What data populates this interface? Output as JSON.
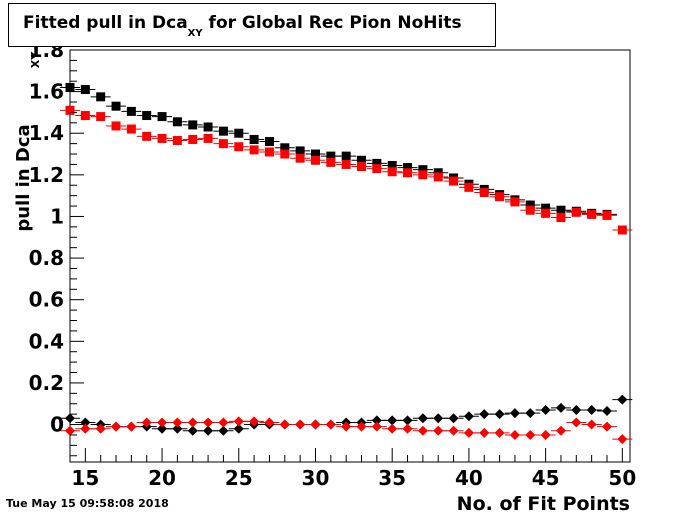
{
  "title": {
    "main": "Fitted pull in Dca",
    "subscript": "XY",
    "rest": " for Global Rec Pion NoHits"
  },
  "timestamp": "Tue May 15 09:58:08 2018",
  "chart_data": {
    "type": "scatter",
    "xlabel": "No. of Fit Points",
    "ylabel": "pull in Dca",
    "ylabel_subscript": "XY",
    "xlim": [
      14,
      50.5
    ],
    "ylim": [
      -0.18,
      1.8
    ],
    "xticks": [
      15,
      20,
      25,
      30,
      35,
      40,
      45,
      50
    ],
    "yticks": [
      0,
      0.2,
      0.4,
      0.6,
      0.8,
      1,
      1.2,
      1.4,
      1.6,
      1.8
    ],
    "ytick_labels": [
      "0",
      "0.2",
      "0.4",
      "0.6",
      "0.8",
      "1",
      "1.2",
      "1.4",
      "1.6",
      "1.8"
    ],
    "grid": false,
    "legend": "none",
    "series": [
      {
        "marker": "square",
        "color": "#000000",
        "x": [
          14,
          15,
          16,
          17,
          18,
          19,
          20,
          21,
          22,
          23,
          24,
          25,
          26,
          27,
          28,
          29,
          30,
          31,
          32,
          33,
          34,
          35,
          36,
          37,
          38,
          39,
          40,
          41,
          42,
          43,
          44,
          45,
          46,
          47,
          48,
          49
        ],
        "y": [
          1.62,
          1.61,
          1.575,
          1.53,
          1.505,
          1.485,
          1.48,
          1.455,
          1.44,
          1.43,
          1.41,
          1.4,
          1.37,
          1.36,
          1.33,
          1.315,
          1.3,
          1.29,
          1.29,
          1.27,
          1.255,
          1.245,
          1.235,
          1.225,
          1.21,
          1.185,
          1.155,
          1.13,
          1.105,
          1.08,
          1.055,
          1.04,
          1.03,
          1.025,
          1.015,
          1.01
        ]
      },
      {
        "marker": "square",
        "color": "#ff0000",
        "x": [
          14,
          15,
          16,
          17,
          18,
          19,
          20,
          21,
          22,
          23,
          24,
          25,
          26,
          27,
          28,
          29,
          30,
          31,
          32,
          33,
          34,
          35,
          36,
          37,
          38,
          39,
          40,
          41,
          42,
          43,
          44,
          45,
          46,
          47,
          48,
          49,
          50
        ],
        "y": [
          1.51,
          1.485,
          1.48,
          1.435,
          1.42,
          1.385,
          1.375,
          1.365,
          1.37,
          1.375,
          1.35,
          1.335,
          1.32,
          1.31,
          1.3,
          1.28,
          1.27,
          1.26,
          1.25,
          1.24,
          1.23,
          1.215,
          1.21,
          1.2,
          1.19,
          1.17,
          1.14,
          1.115,
          1.095,
          1.07,
          1.03,
          1.015,
          0.995,
          1.02,
          1.01,
          1.005,
          0.935
        ]
      },
      {
        "marker": "diamond",
        "color": "#000000",
        "x": [
          14,
          15,
          16,
          17,
          18,
          19,
          20,
          21,
          22,
          23,
          24,
          25,
          26,
          27,
          28,
          29,
          30,
          31,
          32,
          33,
          34,
          35,
          36,
          37,
          38,
          39,
          40,
          41,
          42,
          43,
          44,
          45,
          46,
          47,
          48,
          49,
          50
        ],
        "y": [
          0.03,
          0.01,
          0.0,
          -0.01,
          -0.01,
          -0.01,
          -0.02,
          -0.02,
          -0.03,
          -0.03,
          -0.03,
          -0.02,
          0.0,
          0.0,
          0.0,
          0.0,
          0.0,
          0.0,
          0.01,
          0.01,
          0.02,
          0.02,
          0.02,
          0.03,
          0.03,
          0.03,
          0.04,
          0.05,
          0.05,
          0.055,
          0.055,
          0.07,
          0.08,
          0.07,
          0.07,
          0.065,
          0.12
        ]
      },
      {
        "marker": "diamond",
        "color": "#ff0000",
        "x": [
          14,
          15,
          16,
          17,
          18,
          19,
          20,
          21,
          22,
          23,
          24,
          25,
          26,
          27,
          28,
          29,
          30,
          31,
          32,
          33,
          34,
          35,
          36,
          37,
          38,
          39,
          40,
          41,
          42,
          43,
          44,
          45,
          46,
          47,
          48,
          49,
          50
        ],
        "y": [
          -0.03,
          -0.02,
          -0.02,
          -0.01,
          -0.01,
          0.01,
          0.01,
          0.01,
          0.01,
          0.01,
          0.01,
          0.015,
          0.015,
          0.01,
          0.0,
          0.0,
          0.0,
          0.0,
          -0.01,
          -0.01,
          -0.01,
          -0.02,
          -0.02,
          -0.03,
          -0.03,
          -0.03,
          -0.04,
          -0.04,
          -0.04,
          -0.05,
          -0.05,
          -0.05,
          -0.03,
          0.01,
          0.0,
          -0.01,
          -0.07
        ]
      }
    ]
  }
}
